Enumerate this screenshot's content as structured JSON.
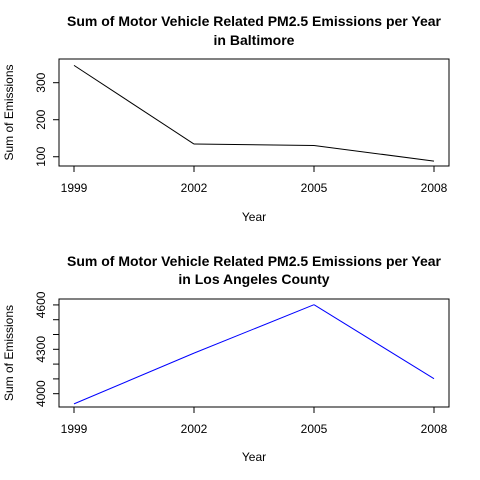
{
  "chart_data": [
    {
      "type": "line",
      "title_lines": [
        "Sum of Motor Vehicle Related PM2.5 Emissions per Year",
        "in Baltimore"
      ],
      "xlabel": "Year",
      "ylabel": "Sum of Emissions",
      "x": [
        1999,
        2002,
        2005,
        2008
      ],
      "x_ticks": [
        "1999",
        "2002",
        "2005",
        "2008"
      ],
      "y_ticks": [
        100,
        200,
        300
      ],
      "ylim": [
        75,
        364
      ],
      "grid": false,
      "series": [
        {
          "values": [
            346.82,
            134.31,
            130.43,
            88.28
          ],
          "color": "#000000"
        }
      ]
    },
    {
      "type": "line",
      "title_lines": [
        "Sum of Motor Vehicle Related PM2.5 Emissions per Year",
        "in Los Angeles County"
      ],
      "xlabel": "Year",
      "ylabel": "Sum of Emissions",
      "x": [
        1999,
        2002,
        2005,
        2008
      ],
      "x_ticks": [
        "1999",
        "2002",
        "2005",
        "2008"
      ],
      "y_ticks": [
        4000,
        4100,
        4200,
        4300,
        4400,
        4500,
        4600
      ],
      "y_tick_labels": [
        "4000",
        "",
        "",
        "4300",
        "",
        "",
        "4600"
      ],
      "ylim": [
        3910,
        4640
      ],
      "grid": false,
      "series": [
        {
          "values": [
            3931.12,
            4274.03,
            4601.41,
            4101.32
          ],
          "color": "#0000ff"
        }
      ]
    }
  ]
}
